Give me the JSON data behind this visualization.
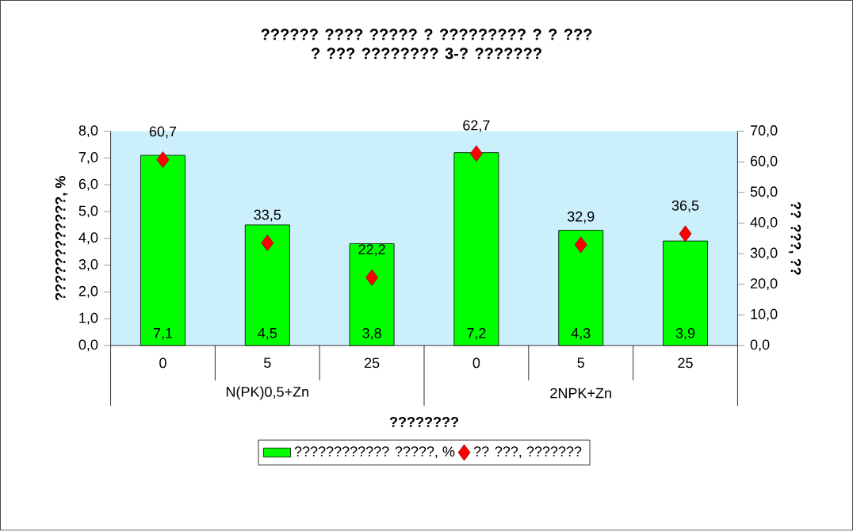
{
  "chart_data": {
    "type": "bar",
    "title": "?????? ???? ????? ? ????????? ? ? ???",
    "subtitle": "? ??? ???????? 3-? ???????",
    "xlabel": "????????",
    "ylabel": "????????????, %",
    "y2label": "?? ???, ??",
    "categories": [
      "0",
      "5",
      "25",
      "0",
      "5",
      "25"
    ],
    "annotations": [
      "N(PK)0,5+Zn",
      "2NPK+Zn"
    ],
    "series": [
      {
        "name": "???????????? ?????, %",
        "color": "#00ff00",
        "values": [
          7.1,
          4.5,
          3.8,
          7.2,
          4.3,
          3.9
        ],
        "value_labels": [
          "7,1",
          "4,5",
          "3,8",
          "7,2",
          "4,3",
          "3,9"
        ]
      },
      {
        "name": "?? ???, ???????",
        "type": "scatter",
        "axis": "y2",
        "marker": "diamond",
        "color": "#ff0000",
        "values": [
          60.7,
          33.5,
          22.2,
          62.7,
          32.9,
          36.5
        ],
        "value_labels": [
          "60,7",
          "33,5",
          "22,2",
          "62,7",
          "32,9",
          "36,5"
        ]
      }
    ],
    "ylim": [
      0,
      8
    ],
    "yticks": [
      {
        "value": 0,
        "label": "0,0"
      },
      {
        "value": 1,
        "label": "1,0"
      },
      {
        "value": 2,
        "label": "2,0"
      },
      {
        "value": 3,
        "label": "3,0"
      },
      {
        "value": 4,
        "label": "4,0"
      },
      {
        "value": 5,
        "label": "5,0"
      },
      {
        "value": 6,
        "label": "6,0"
      },
      {
        "value": 7,
        "label": "7,0"
      },
      {
        "value": 8,
        "label": "8,0"
      }
    ],
    "y2lim": [
      0,
      70
    ],
    "y2ticks": [
      {
        "value": 0,
        "label": "0,0"
      },
      {
        "value": 10,
        "label": "10,0"
      },
      {
        "value": 20,
        "label": "20,0"
      },
      {
        "value": 30,
        "label": "30,0"
      },
      {
        "value": 40,
        "label": "40,0"
      },
      {
        "value": 50,
        "label": "50,0"
      },
      {
        "value": 60,
        "label": "60,0"
      },
      {
        "value": 70,
        "label": "70,0"
      }
    ],
    "legend": "bottom",
    "grid": false
  }
}
